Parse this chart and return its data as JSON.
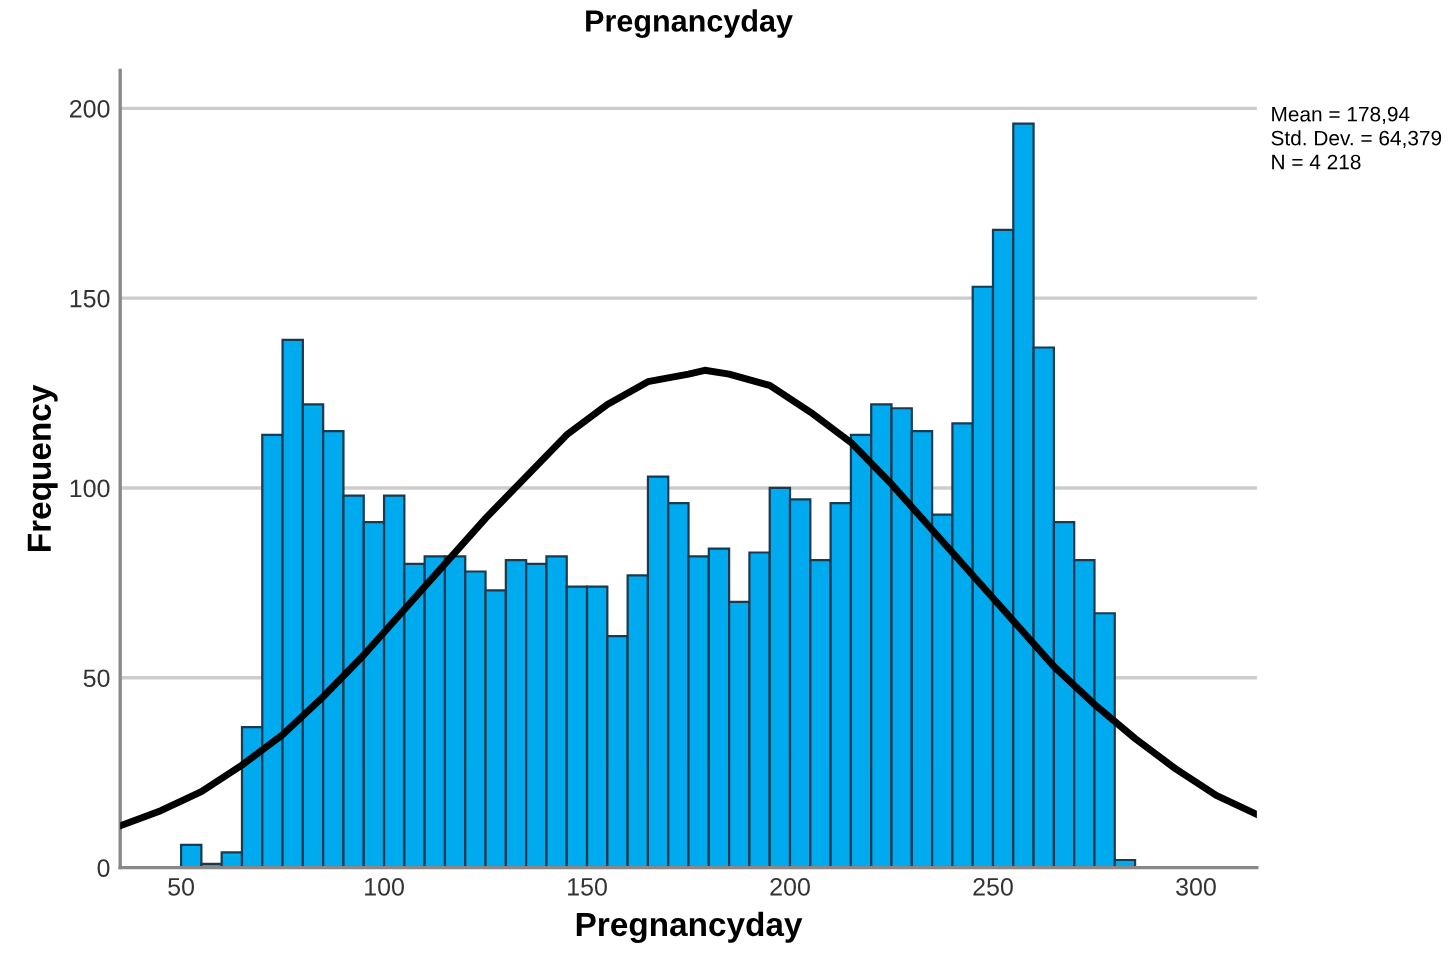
{
  "chart_data": {
    "type": "histogram",
    "title": "Pregnancyday",
    "xlabel": "Pregnancyday",
    "ylabel": "Frequency",
    "bins": [
      50,
      55,
      60,
      65,
      70,
      75,
      80,
      85,
      90,
      95,
      100,
      105,
      110,
      115,
      120,
      125,
      130,
      135,
      140,
      145,
      150,
      155,
      160,
      165,
      170,
      175,
      180,
      185,
      190,
      195,
      200,
      205,
      210,
      215,
      220,
      225,
      230,
      235,
      240,
      245,
      250,
      255,
      260,
      265,
      270,
      275,
      280,
      285
    ],
    "values": [
      6,
      1,
      4,
      37,
      114,
      139,
      122,
      115,
      98,
      91,
      98,
      80,
      82,
      82,
      78,
      73,
      81,
      80,
      82,
      74,
      74,
      61,
      77,
      103,
      96,
      82,
      84,
      70,
      83,
      100,
      97,
      81,
      96,
      114,
      122,
      121,
      115,
      93,
      117,
      153,
      168,
      196,
      137,
      91,
      81,
      67,
      2
    ],
    "color": "#00aaee",
    "series": [
      {
        "type": "line",
        "color": "#000000",
        "x": [
          35,
          45,
          55,
          65,
          75,
          85,
          95,
          105,
          115,
          125,
          135,
          145,
          155,
          165,
          175,
          179,
          185,
          195,
          205,
          215,
          225,
          235,
          245,
          255,
          265,
          275,
          285,
          295,
          305,
          315
        ],
        "values": [
          11,
          15,
          20,
          27,
          35,
          45,
          56,
          68,
          80,
          92,
          103,
          114,
          122,
          128,
          130,
          131,
          130,
          127,
          120,
          112,
          101,
          89,
          77,
          65,
          53,
          43,
          34,
          26,
          19,
          14
        ]
      }
    ],
    "annotations": [
      "Mean = 178,94",
      "Std. Dev. = 64,379",
      "N = 4 218"
    ],
    "xlim": [
      35,
      315
    ],
    "ylim": [
      0,
      210
    ],
    "xticks": [
      50,
      100,
      150,
      200,
      250,
      300
    ],
    "yticks": [
      0,
      50,
      100,
      150,
      200
    ],
    "grid": "y",
    "legend": false
  }
}
